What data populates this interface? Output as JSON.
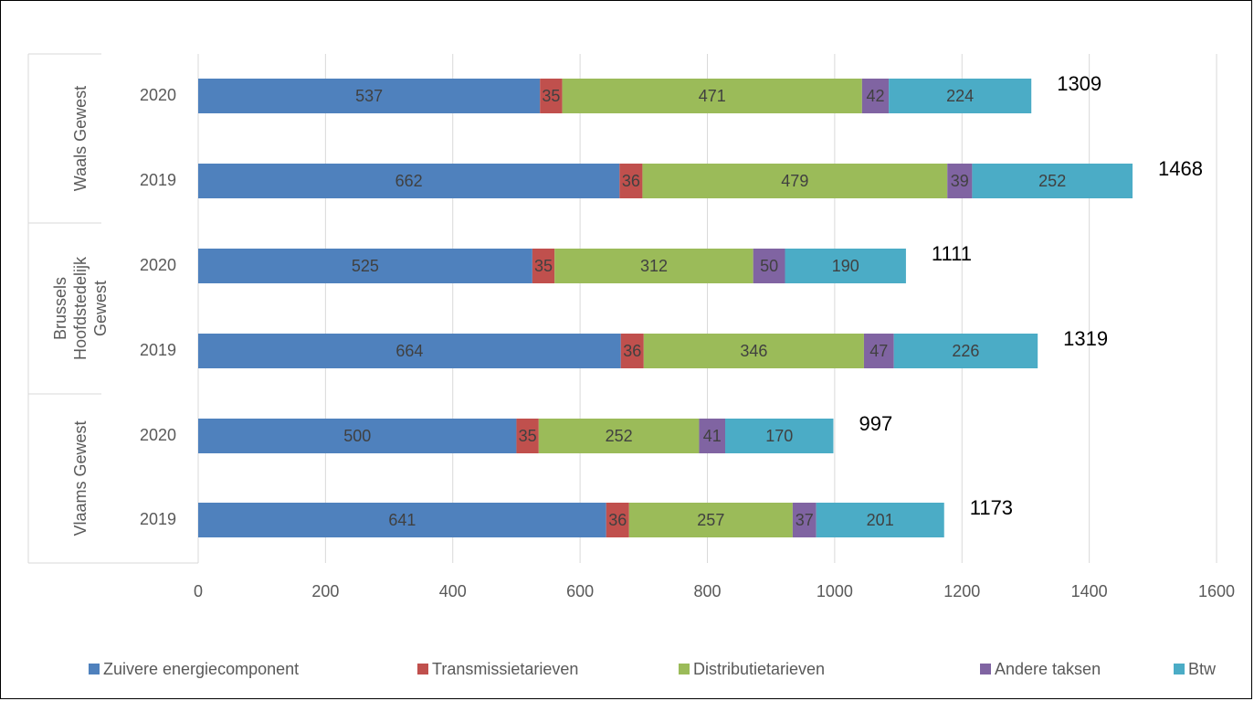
{
  "chart_data": {
    "type": "bar",
    "orientation": "horizontal",
    "stacked": true,
    "xlim": [
      0,
      1600
    ],
    "xticks": [
      0,
      200,
      400,
      600,
      800,
      1000,
      1200,
      1400,
      1600
    ],
    "grid": "vertical",
    "legend_position": "bottom",
    "groups": [
      {
        "name": "Waals Gewest",
        "lines": [
          "Waals Gewest"
        ]
      },
      {
        "name": "Brussels Hoofdstedelijk Gewest",
        "lines": [
          "Brussels",
          "Hoofdstedelijk",
          "Gewest"
        ]
      },
      {
        "name": "Vlaams Gewest",
        "lines": [
          "Vlaams Gewest"
        ]
      }
    ],
    "categories": [
      {
        "group": 0,
        "label": "2020"
      },
      {
        "group": 0,
        "label": "2019"
      },
      {
        "group": 1,
        "label": "2020"
      },
      {
        "group": 1,
        "label": "2019"
      },
      {
        "group": 2,
        "label": "2020"
      },
      {
        "group": 2,
        "label": "2019"
      }
    ],
    "series": [
      {
        "name": "Zuivere energiecomponent",
        "color": "#4F81BD",
        "values": [
          537,
          662,
          525,
          664,
          500,
          641
        ]
      },
      {
        "name": "Transmissietarieven",
        "color": "#C0504D",
        "values": [
          35,
          36,
          35,
          36,
          35,
          36
        ]
      },
      {
        "name": "Distributietarieven",
        "color": "#9BBB59",
        "values": [
          471,
          479,
          312,
          346,
          252,
          257
        ]
      },
      {
        "name": "Andere taksen",
        "color": "#8064A2",
        "values": [
          42,
          39,
          50,
          47,
          41,
          37
        ]
      },
      {
        "name": "Btw",
        "color": "#4BACC6",
        "values": [
          224,
          252,
          190,
          226,
          170,
          201
        ]
      }
    ],
    "totals": [
      1309,
      1468,
      1111,
      1319,
      997,
      1173
    ]
  }
}
